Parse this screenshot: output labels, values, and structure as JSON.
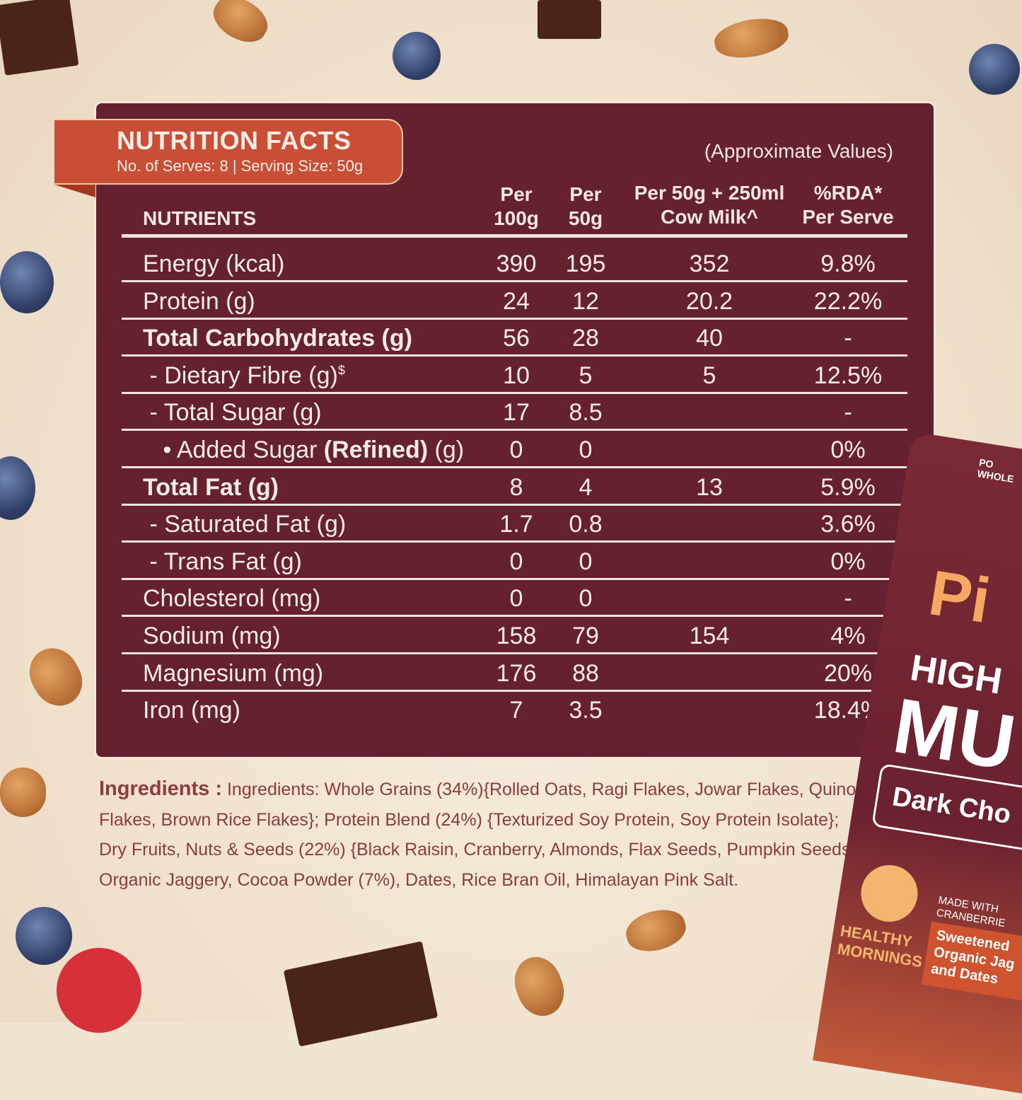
{
  "header": {
    "title": "NUTRITION FACTS",
    "subtitle": "No. of Serves: 8 | Serving Size: 50g",
    "note": "(Approximate Values)"
  },
  "columns": {
    "nutrients": "NUTRIENTS",
    "per100_1": "Per",
    "per100_2": "100g",
    "per50_1": "Per",
    "per50_2": "50g",
    "milk_1": "Per 50g + 250ml",
    "milk_2": "Cow Milk^",
    "rda_1": "%RDA*",
    "rda_2": "Per Serve"
  },
  "rows": [
    {
      "label": "Energy (kcal)",
      "bold": false,
      "per100": "390",
      "per50": "195",
      "milk": "352",
      "rda": "9.8%"
    },
    {
      "label": "Protein (g)",
      "bold": false,
      "per100": "24",
      "per50": "12",
      "milk": "20.2",
      "rda": "22.2%"
    },
    {
      "label": "Total Carbohydrates (g)",
      "bold": true,
      "per100": "56",
      "per50": "28",
      "milk": "40",
      "rda": "-"
    },
    {
      "label": " - Dietary Fibre (g)",
      "sup": "$",
      "bold": false,
      "per100": "10",
      "per50": "5",
      "milk": "5",
      "rda": "12.5%"
    },
    {
      "label": " - Total Sugar (g)",
      "bold": false,
      "per100": "17",
      "per50": "8.5",
      "milk": "",
      "rda": "-"
    },
    {
      "label": "   • Added Sugar ",
      "label_bold": "(Refined)",
      "label_suffix": " (g)",
      "bold": false,
      "per100": "0",
      "per50": "0",
      "milk": "",
      "rda": "0%"
    },
    {
      "label": "Total Fat (g)",
      "bold": true,
      "per100": "8",
      "per50": "4",
      "milk": "13",
      "rda": "5.9%"
    },
    {
      "label": " - Saturated Fat (g)",
      "bold": false,
      "per100": "1.7",
      "per50": "0.8",
      "milk": "",
      "rda": "3.6%"
    },
    {
      "label": " - Trans Fat (g)",
      "bold": false,
      "per100": "0",
      "per50": "0",
      "milk": "",
      "rda": "0%"
    },
    {
      "label": "Cholesterol (mg)",
      "bold": false,
      "per100": "0",
      "per50": "0",
      "milk": "",
      "rda": "-"
    },
    {
      "label": "Sodium (mg)",
      "bold": false,
      "per100": "158",
      "per50": "79",
      "milk": "154",
      "rda": "4%"
    },
    {
      "label": "Magnesium (mg)",
      "bold": false,
      "per100": "176",
      "per50": "88",
      "milk": "",
      "rda": "20%"
    },
    {
      "label": "Iron (mg)",
      "bold": false,
      "per100": "7",
      "per50": "3.5",
      "milk": "",
      "rda": "18.4%"
    }
  ],
  "ingredients": {
    "heading": "Ingredients :",
    "text": "Ingredients: Whole Grains (34%){Rolled Oats, Ragi Flakes, Jowar Flakes, Quinoa Flakes, Brown Rice Flakes}; Protein Blend (24%) {Texturized Soy Protein, Soy Protein Isolate}; Dry Fruits, Nuts & Seeds (22%) {Black Raisin, Cranberry, Almonds, Flax Seeds, Pumpkin Seeds}; Organic Jaggery, Cocoa Powder (7%), Dates, Rice Bran Oil, Himalayan Pink Salt."
  },
  "package": {
    "brand_top": "PO\nWHOLE",
    "logo": "Pi",
    "line1": "HIGH",
    "line2": "MU",
    "variant": "Dark Cho",
    "badge": "HEALTHY\nMORNINGS",
    "made": "MADE WITH\nCRANBERRIE",
    "sweet": "Sweetened\nOrganic Jag\nand Dates"
  },
  "colors": {
    "panel": "#652130",
    "ribbon": "#c84e36",
    "ingredients_text": "#8a3d3f",
    "background": "#f1e4d2"
  }
}
